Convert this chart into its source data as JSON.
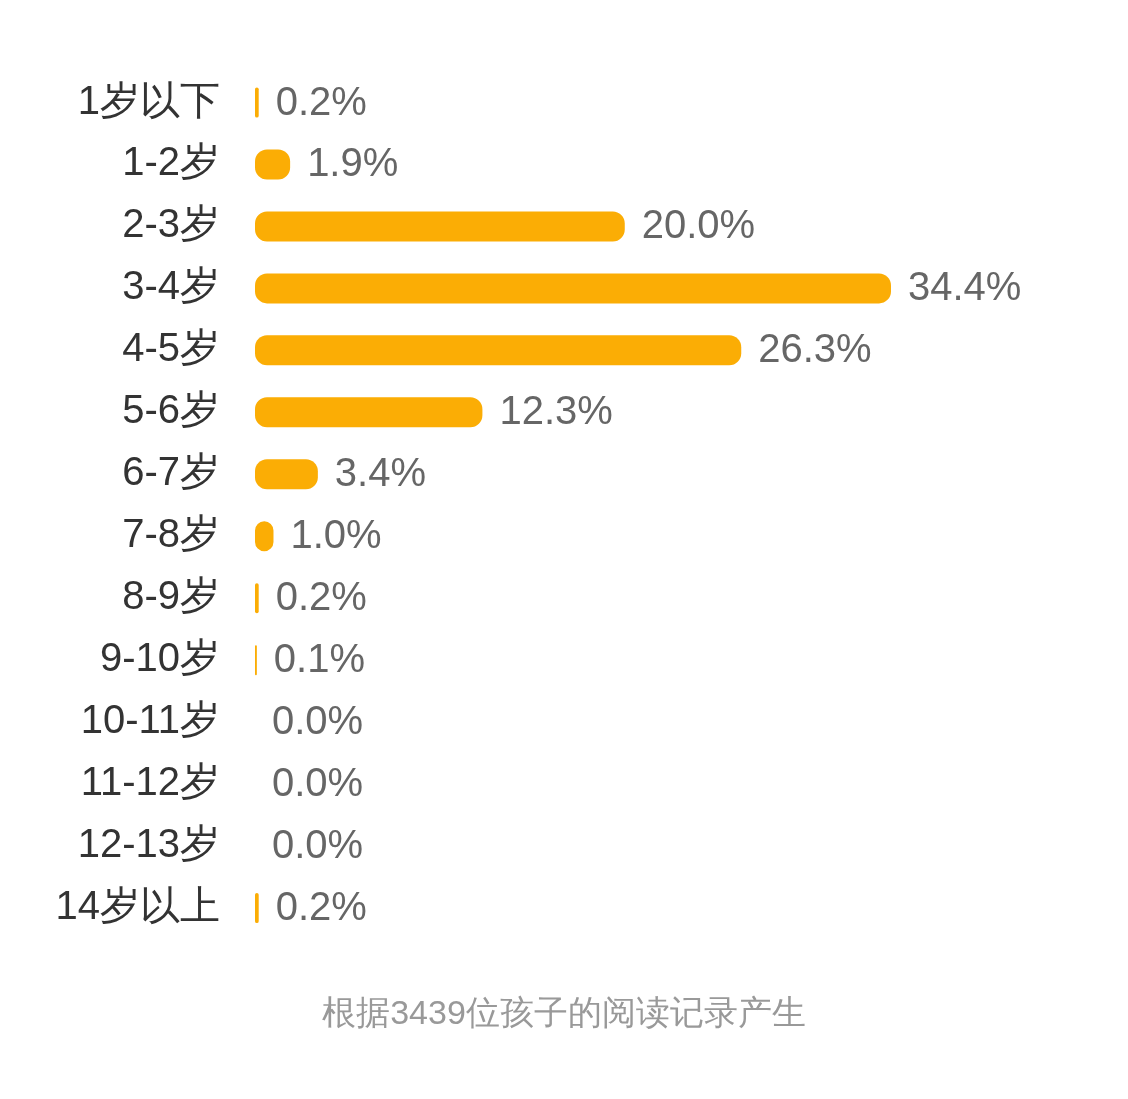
{
  "chart_data": {
    "type": "bar",
    "orientation": "horizontal",
    "categories": [
      "1岁以下",
      "1-2岁",
      "2-3岁",
      "3-4岁",
      "4-5岁",
      "5-6岁",
      "6-7岁",
      "7-8岁",
      "8-9岁",
      "9-10岁",
      "10-11岁",
      "11-12岁",
      "12-13岁",
      "14岁以上"
    ],
    "values": [
      0.2,
      1.9,
      20.0,
      34.4,
      26.3,
      12.3,
      3.4,
      1.0,
      0.2,
      0.1,
      0.0,
      0.0,
      0.0,
      0.2
    ],
    "color": "#fbad05",
    "value_labels": [
      "0.2%",
      "1.9%",
      "20.0%",
      "34.4%",
      "26.3%",
      "12.3%",
      "3.4%",
      "1.0%",
      "0.2%",
      "0.1%",
      "0.0%",
      "0.0%",
      "0.0%",
      "0.2%"
    ],
    "tick_labels": "y",
    "annotations": [
      "根据3439位孩子的阅读记录产生"
    ]
  }
}
